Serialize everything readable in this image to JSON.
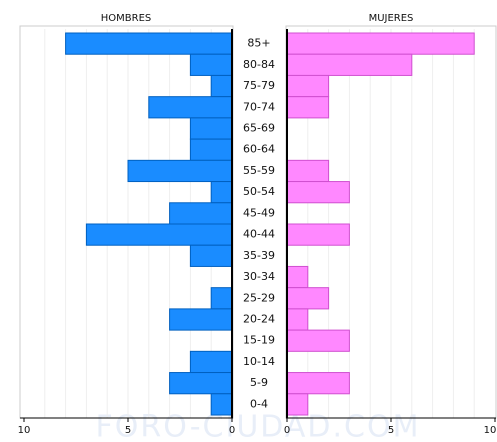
{
  "chart_data": {
    "type": "pyramid",
    "categories": [
      "85+",
      "80-84",
      "75-79",
      "70-74",
      "65-69",
      "60-64",
      "55-59",
      "50-54",
      "45-49",
      "40-44",
      "35-39",
      "30-34",
      "25-29",
      "20-24",
      "15-19",
      "10-14",
      "5-9",
      "0-4"
    ],
    "series": [
      {
        "name": "HOMBRES",
        "color": "#1a8cff",
        "values": [
          8,
          2,
          1,
          4,
          2,
          2,
          5,
          1,
          3,
          7,
          2,
          0,
          1,
          3,
          0,
          2,
          3,
          1
        ]
      },
      {
        "name": "MUJERES",
        "color": "#ff88ff",
        "values": [
          9,
          6,
          2,
          2,
          0,
          0,
          2,
          3,
          0,
          3,
          0,
          1,
          2,
          1,
          3,
          0,
          3,
          1
        ]
      }
    ],
    "xlim": [
      0,
      10
    ],
    "xticks": [
      0,
      5,
      10
    ],
    "xgrid": [
      1,
      2,
      3,
      4,
      5,
      6,
      7,
      8,
      9
    ],
    "watermark": "FORO-CIUDAD.COM"
  }
}
